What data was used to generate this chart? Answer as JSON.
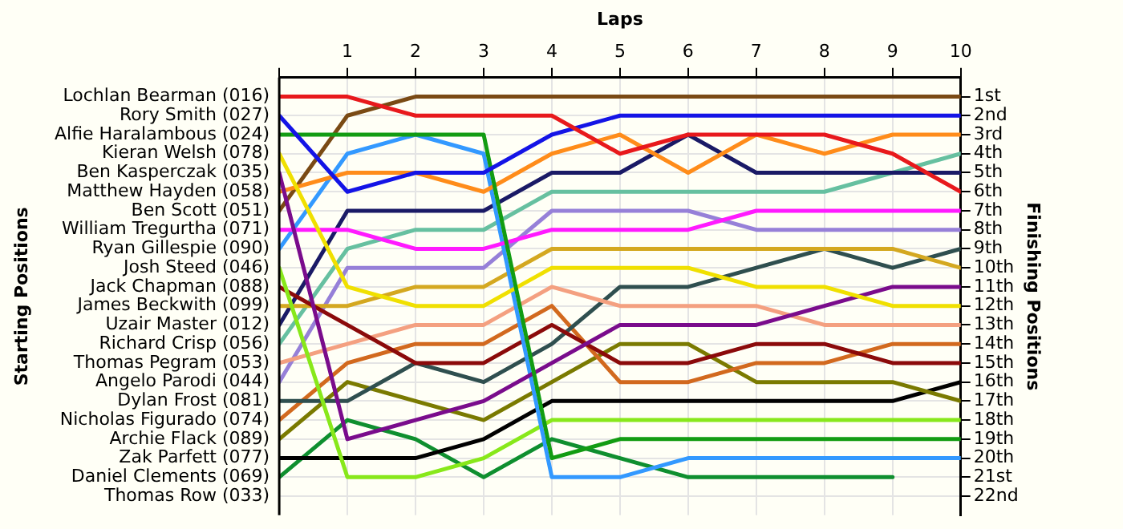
{
  "chart_data": {
    "type": "line",
    "xlabel": "Laps",
    "ylabel": "Finishing Positions",
    "annotations": [
      "Starting Positions",
      "Thomas Row (033)"
    ],
    "x": [
      0,
      1,
      2,
      3,
      4,
      5,
      6,
      7,
      8,
      9,
      10
    ],
    "xlim": [
      0,
      10
    ],
    "xticks": [
      {
        "value": 0,
        "label": null
      },
      1,
      2,
      3,
      4,
      5,
      6,
      7,
      8,
      9,
      10
    ],
    "ylim": [
      23,
      0
    ],
    "yticks": [
      {
        "value": 1,
        "label": "1st"
      },
      {
        "value": 2,
        "label": "2nd"
      },
      {
        "value": 3,
        "label": "3rd"
      },
      {
        "value": 4,
        "label": "4th"
      },
      {
        "value": 5,
        "label": "5th"
      },
      {
        "value": 6,
        "label": "6th"
      },
      {
        "value": 7,
        "label": "7th"
      },
      {
        "value": 8,
        "label": "8th"
      },
      {
        "value": 9,
        "label": "9th"
      },
      {
        "value": 10,
        "label": "10th"
      },
      {
        "value": 11,
        "label": "11th"
      },
      {
        "value": 12,
        "label": "12th"
      },
      {
        "value": 13,
        "label": "13th"
      },
      {
        "value": 14,
        "label": "14th"
      },
      {
        "value": 15,
        "label": "15th"
      },
      {
        "value": 16,
        "label": "16th"
      },
      {
        "value": 17,
        "label": "17th"
      },
      {
        "value": 18,
        "label": "18th"
      },
      {
        "value": 19,
        "label": "19th"
      },
      {
        "value": 20,
        "label": "20th"
      },
      {
        "value": 21,
        "label": "21st"
      },
      {
        "value": 22,
        "label": "22nd"
      }
    ],
    "grid": true,
    "legend": false,
    "marker": "none",
    "line_style": "solid",
    "series": [
      {
        "name": "Lochlan Bearman (016)",
        "color": "#e8191c",
        "values": [
          1,
          1,
          2,
          2,
          2,
          4,
          3,
          3,
          3,
          4,
          6
        ]
      },
      {
        "name": "Rory Smith (027)",
        "color": "#1414e6",
        "values": [
          2,
          6,
          5,
          5,
          3,
          2,
          2,
          2,
          2,
          2,
          2
        ]
      },
      {
        "name": "Alfie Haralambous (024)",
        "color": "#129c12",
        "values": [
          3,
          3,
          3,
          3,
          20,
          19,
          19,
          19,
          19,
          19,
          19
        ]
      },
      {
        "name": "Kieran Welsh (078)",
        "color": "#f0e000",
        "values": [
          4,
          11,
          12,
          12,
          10,
          10,
          10,
          11,
          11,
          12,
          12
        ]
      },
      {
        "name": "Ben Kasperczak (035)",
        "color": "#7a0c8c",
        "values": [
          5,
          19,
          18,
          17,
          15,
          13,
          13,
          13,
          12,
          11,
          11
        ]
      },
      {
        "name": "Matthew Hayden (058)",
        "color": "#ff8c1a",
        "values": [
          6,
          5,
          5,
          6,
          4,
          3,
          5,
          3,
          4,
          3,
          3
        ]
      },
      {
        "name": "Ben Scott (051)",
        "color": "#7a4a14",
        "values": [
          7,
          2,
          1,
          1,
          1,
          1,
          1,
          1,
          1,
          1,
          1
        ]
      },
      {
        "name": "William Tregurtha (071)",
        "color": "#ff1aff",
        "values": [
          8,
          8,
          9,
          9,
          8,
          8,
          8,
          7,
          7,
          7,
          7
        ]
      },
      {
        "name": "Ryan Gillespie (090)",
        "color": "#3399ff",
        "values": [
          9,
          4,
          3,
          4,
          21,
          21,
          20,
          20,
          20,
          20,
          20
        ]
      },
      {
        "name": "Josh Steed (046)",
        "color": "#88e81a",
        "values": [
          10,
          21,
          21,
          20,
          18,
          18,
          18,
          18,
          18,
          18,
          18
        ]
      },
      {
        "name": "Jack Chapman (088)",
        "color": "#8b0a0a",
        "values": [
          11,
          13,
          15,
          15,
          13,
          15,
          15,
          14,
          14,
          15,
          15
        ]
      },
      {
        "name": "James Beckwith (099)",
        "color": "#d4a820",
        "values": [
          12,
          12,
          11,
          11,
          9,
          9,
          9,
          9,
          9,
          9,
          10
        ]
      },
      {
        "name": "Uzair Master (012)",
        "color": "#1a1a66",
        "values": [
          13,
          7,
          7,
          7,
          5,
          5,
          3,
          5,
          5,
          5,
          5
        ]
      },
      {
        "name": "Richard Crisp (056)",
        "color": "#66c0a0",
        "values": [
          14,
          9,
          8,
          8,
          6,
          6,
          6,
          6,
          6,
          5,
          4
        ]
      },
      {
        "name": "Thomas Pegram (053)",
        "color": "#f4a080",
        "values": [
          15,
          14,
          13,
          13,
          11,
          12,
          12,
          12,
          13,
          13,
          13
        ]
      },
      {
        "name": "Angelo Parodi (044)",
        "color": "#9680d8",
        "values": [
          16,
          10,
          10,
          10,
          7,
          7,
          7,
          8,
          8,
          8,
          8
        ]
      },
      {
        "name": "Dylan Frost (081)",
        "color": "#2f4f4f",
        "values": [
          17,
          17,
          15,
          16,
          14,
          11,
          11,
          10,
          9,
          10,
          9
        ]
      },
      {
        "name": "Nicholas Figurado (074)",
        "color": "#d2691e",
        "values": [
          18,
          15,
          14,
          14,
          12,
          16,
          16,
          15,
          15,
          14,
          14
        ]
      },
      {
        "name": "Archie Flack (089)",
        "color": "#7a7a00",
        "values": [
          19,
          16,
          17,
          18,
          16,
          14,
          14,
          16,
          16,
          16,
          17
        ]
      },
      {
        "name": "Zak Parfett (077)",
        "color": "#000000",
        "values": [
          20,
          20,
          20,
          19,
          17,
          17,
          17,
          17,
          17,
          17,
          16
        ]
      },
      {
        "name": "Daniel Clements (069)",
        "color": "#0f8f2f",
        "values": [
          21,
          18,
          19,
          21,
          19,
          20,
          21,
          21,
          21,
          21,
          null
        ]
      }
    ]
  }
}
